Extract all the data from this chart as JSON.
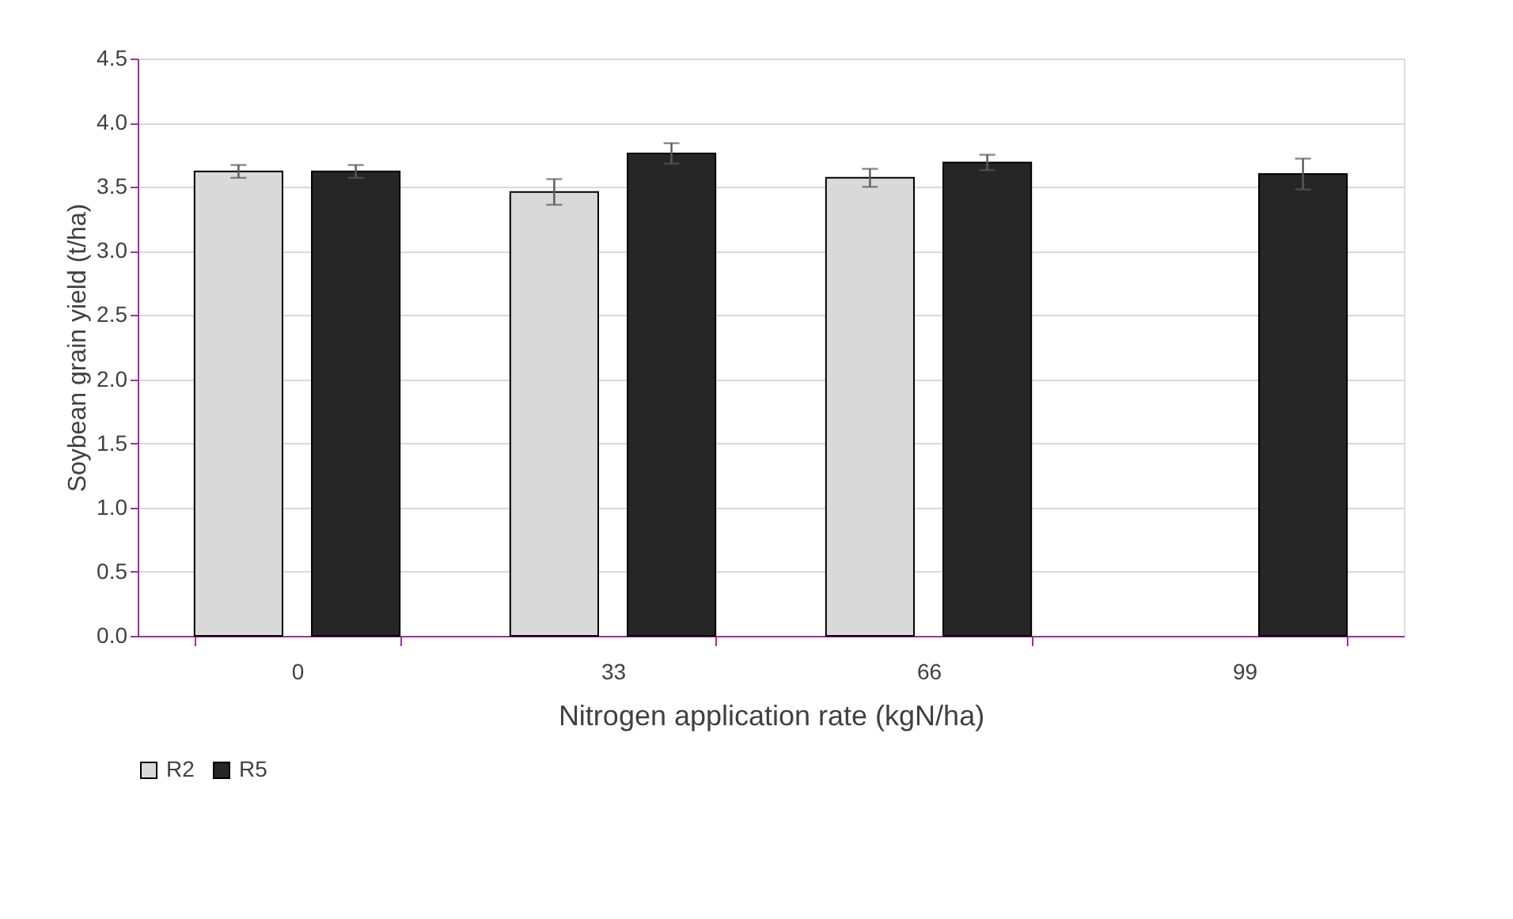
{
  "chart_data": {
    "type": "bar",
    "xlabel": "Nitrogen application rate (kgN/ha)",
    "ylabel": "Soybean grain yield (t/ha)",
    "categories": [
      "0",
      "33",
      "66",
      "99"
    ],
    "series": [
      {
        "name": "R2",
        "color": "#d9d9d9",
        "values": [
          3.62,
          3.46,
          3.57,
          null
        ],
        "errors": [
          0.05,
          0.1,
          0.07,
          null
        ]
      },
      {
        "name": "R5",
        "color": "#262626",
        "values": [
          3.62,
          3.76,
          3.69,
          3.6
        ],
        "errors": [
          0.05,
          0.08,
          0.06,
          0.12
        ]
      }
    ],
    "ylim": [
      0,
      4.5
    ],
    "yticks": [
      {
        "value": 0,
        "label": "0.0"
      },
      {
        "value": 0.5,
        "label": "0.5"
      },
      {
        "value": 1,
        "label": "1.0"
      },
      {
        "value": 1.5,
        "label": "1.5"
      },
      {
        "value": 2,
        "label": "2.0"
      },
      {
        "value": 2.5,
        "label": "2.5"
      },
      {
        "value": 3,
        "label": "3.0"
      },
      {
        "value": 3.5,
        "label": "3.5"
      },
      {
        "value": 4,
        "label": "4.0"
      },
      {
        "value": 4.5,
        "label": "4.5"
      }
    ],
    "grid": "y",
    "legend": "bottom"
  }
}
